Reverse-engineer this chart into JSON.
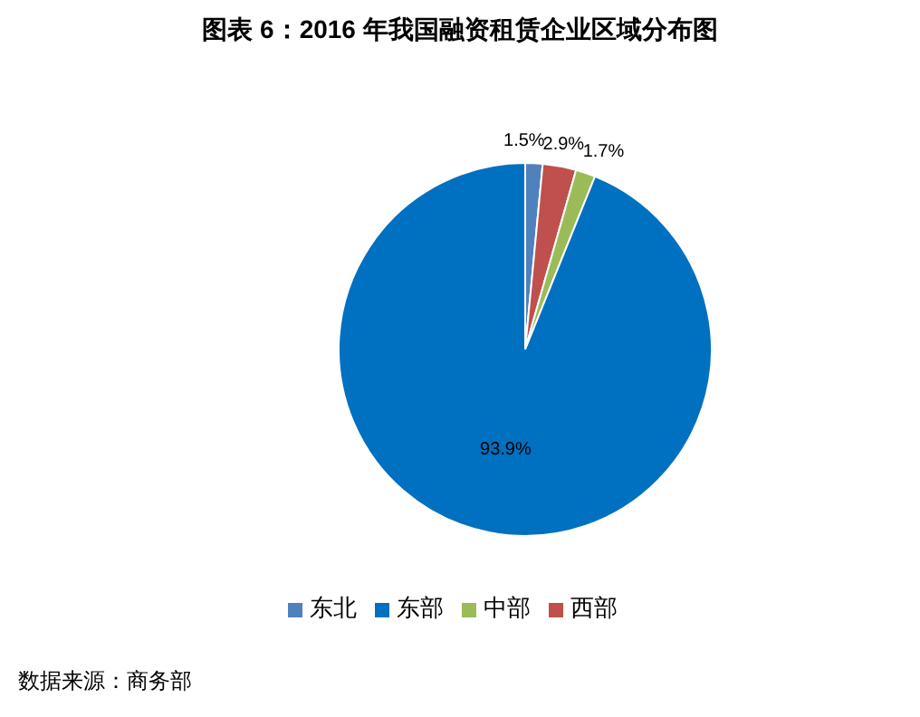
{
  "chart_data": {
    "type": "pie",
    "title": "图表 6：2016 年我国融资租赁企业区域分布图",
    "categories": [
      "东北",
      "西部",
      "中部",
      "东部"
    ],
    "values": [
      1.5,
      2.9,
      1.7,
      93.9
    ],
    "value_labels": [
      "1.5%",
      "2.9%",
      "1.7%",
      "93.9%"
    ],
    "colors": [
      "#4f81bd",
      "#c0504d",
      "#9bbb59",
      "#0070c0"
    ],
    "legend": "bottom",
    "annotations": [
      "数据来源：商务部"
    ]
  }
}
